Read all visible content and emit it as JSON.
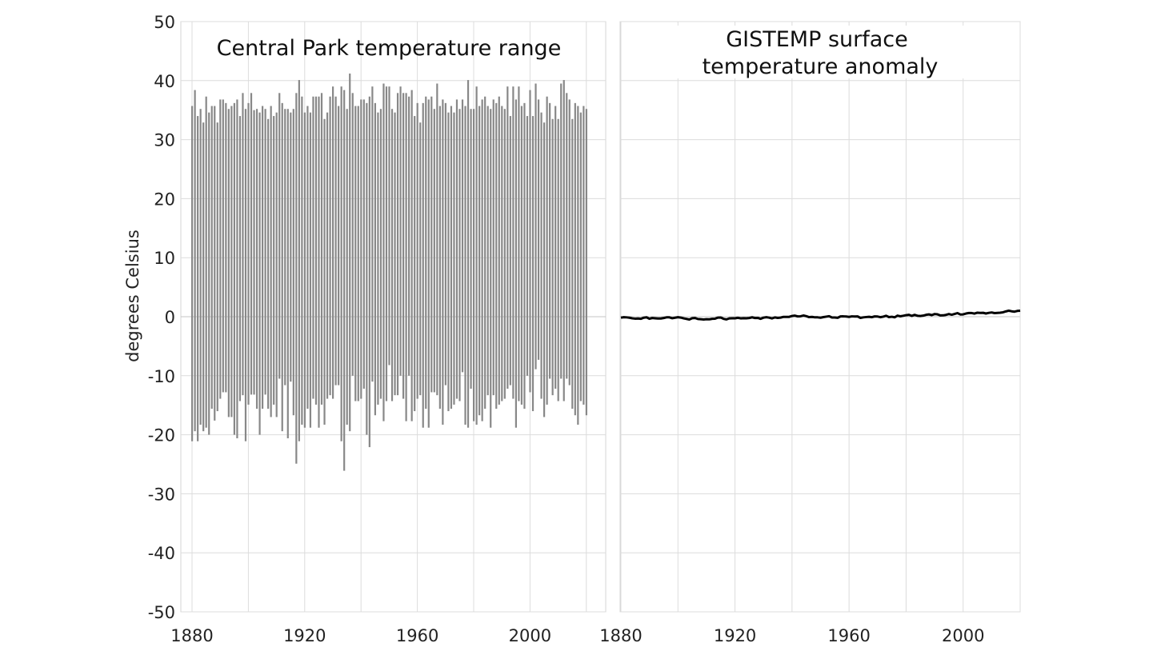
{
  "chart_data": [
    {
      "type": "bar",
      "subtype": "range",
      "title": "Central Park temperature range",
      "ylabel": "degrees Celsius",
      "xlabel": "",
      "ylim": [
        -50,
        50
      ],
      "xlim": [
        1876,
        2026
      ],
      "yticks": [
        "50",
        "40",
        "30",
        "20",
        "10",
        "0",
        "-10",
        "-20",
        "-30",
        "-40",
        "-50"
      ],
      "xticks": [
        "1880",
        "1920",
        "1960",
        "2000"
      ],
      "grid": true,
      "bar_color": "#888888",
      "x_start": 1880,
      "high": [
        35.7,
        38.4,
        34.0,
        35.2,
        32.9,
        37.3,
        34.6,
        35.7,
        35.7,
        32.9,
        36.8,
        36.8,
        36.2,
        35.2,
        35.7,
        36.2,
        36.8,
        34.0,
        37.9,
        35.2,
        36.2,
        37.9,
        35.0,
        35.2,
        34.6,
        35.7,
        35.2,
        33.5,
        35.7,
        34.0,
        34.6,
        37.9,
        36.2,
        35.2,
        35.2,
        34.6,
        35.2,
        37.9,
        40.1,
        37.3,
        34.6,
        35.7,
        34.6,
        37.3,
        37.3,
        37.3,
        37.9,
        33.5,
        34.6,
        37.3,
        39.0,
        37.3,
        35.7,
        39.0,
        38.4,
        35.2,
        41.2,
        37.9,
        35.7,
        35.7,
        36.8,
        36.8,
        36.2,
        37.3,
        39.0,
        36.2,
        34.6,
        35.2,
        39.5,
        39.0,
        39.0,
        35.2,
        34.6,
        37.9,
        39.0,
        37.9,
        37.9,
        37.3,
        38.4,
        34.0,
        36.2,
        32.9,
        36.2,
        37.3,
        36.8,
        37.3,
        35.2,
        39.5,
        35.7,
        36.8,
        36.2,
        34.6,
        35.7,
        34.6,
        36.8,
        35.2,
        36.8,
        35.7,
        40.1,
        35.2,
        35.2,
        39.0,
        35.7,
        36.8,
        37.3,
        35.7,
        35.2,
        36.8,
        36.2,
        37.3,
        35.7,
        35.2,
        39.0,
        34.0,
        39.0,
        36.8,
        39.0,
        35.7,
        36.2,
        34.0,
        38.4,
        34.0,
        39.5,
        36.8,
        34.6,
        32.9,
        37.3,
        36.2,
        33.5,
        35.7,
        33.5,
        39.5,
        40.1,
        37.9,
        36.8,
        33.5,
        36.2,
        35.7,
        34.6,
        35.7,
        35.2
      ],
      "low": [
        -21.1,
        -19.4,
        -21.1,
        -18.3,
        -19.4,
        -18.8,
        -20.0,
        -15.6,
        -17.6,
        -16.0,
        -13.9,
        -12.8,
        -12.8,
        -17.0,
        -17.0,
        -20.0,
        -20.6,
        -14.3,
        -13.3,
        -21.1,
        -14.9,
        -13.2,
        -13.2,
        -15.6,
        -20.0,
        -15.6,
        -13.2,
        -15.6,
        -17.0,
        -14.9,
        -17.0,
        -10.5,
        -19.4,
        -11.6,
        -20.6,
        -11.0,
        -16.7,
        -24.9,
        -21.1,
        -18.3,
        -18.8,
        -15.6,
        -18.8,
        -13.9,
        -14.9,
        -18.8,
        -14.9,
        -18.3,
        -13.9,
        -13.3,
        -13.9,
        -11.6,
        -11.6,
        -21.1,
        -26.1,
        -18.3,
        -19.4,
        -10.0,
        -14.3,
        -14.3,
        -13.9,
        -12.2,
        -20.0,
        -22.1,
        -11.0,
        -16.7,
        -14.9,
        -13.9,
        -17.7,
        -14.3,
        -8.2,
        -14.3,
        -13.3,
        -13.3,
        -10.0,
        -13.9,
        -17.7,
        -10.0,
        -17.7,
        -16.0,
        -13.9,
        -13.3,
        -18.8,
        -15.6,
        -18.8,
        -12.8,
        -12.8,
        -13.3,
        -15.6,
        -18.3,
        -11.6,
        -16.0,
        -15.6,
        -14.9,
        -13.9,
        -14.3,
        -9.4,
        -18.3,
        -18.8,
        -12.2,
        -17.7,
        -18.3,
        -16.7,
        -17.7,
        -15.6,
        -13.3,
        -18.8,
        -13.3,
        -15.6,
        -14.9,
        -14.3,
        -13.9,
        -12.2,
        -11.6,
        -13.9,
        -18.8,
        -14.3,
        -14.9,
        -15.6,
        -10.0,
        -12.8,
        -16.0,
        -8.9,
        -7.3,
        -13.9,
        -17.0,
        -14.9,
        -10.5,
        -13.3,
        -12.2,
        -14.3,
        -10.5,
        -14.3,
        -10.5,
        -11.6,
        -15.6,
        -16.7,
        -18.3,
        -14.3,
        -14.9,
        -16.7
      ]
    },
    {
      "type": "line",
      "title": "GISTEMP surface temperature anomaly",
      "title_lines": [
        "GISTEMP surface",
        "temperature anomaly"
      ],
      "ylim": [
        -50,
        50
      ],
      "xlim": [
        1880,
        2020
      ],
      "xticks": [
        "1880",
        "1920",
        "1960",
        "2000"
      ],
      "grid": true,
      "line_color": "#000000",
      "x_start": 1880,
      "values": [
        -0.16,
        -0.08,
        -0.11,
        -0.17,
        -0.28,
        -0.33,
        -0.31,
        -0.36,
        -0.17,
        -0.1,
        -0.35,
        -0.22,
        -0.27,
        -0.31,
        -0.3,
        -0.22,
        -0.11,
        -0.11,
        -0.26,
        -0.17,
        -0.08,
        -0.15,
        -0.28,
        -0.37,
        -0.47,
        -0.26,
        -0.22,
        -0.39,
        -0.43,
        -0.48,
        -0.43,
        -0.44,
        -0.36,
        -0.34,
        -0.15,
        -0.14,
        -0.36,
        -0.46,
        -0.29,
        -0.27,
        -0.27,
        -0.19,
        -0.28,
        -0.26,
        -0.27,
        -0.22,
        -0.1,
        -0.22,
        -0.2,
        -0.36,
        -0.16,
        -0.09,
        -0.16,
        -0.29,
        -0.12,
        -0.2,
        -0.15,
        -0.03,
        -0.03,
        -0.03,
        0.12,
        0.18,
        0.05,
        0.07,
        0.2,
        0.09,
        -0.07,
        -0.03,
        -0.11,
        -0.11,
        -0.17,
        -0.07,
        0.01,
        0.08,
        -0.13,
        -0.14,
        -0.19,
        0.05,
        0.06,
        0.03,
        -0.03,
        0.06,
        0.03,
        0.05,
        -0.2,
        -0.11,
        -0.06,
        -0.02,
        -0.08,
        0.05,
        0.03,
        -0.08,
        0.01,
        0.16,
        -0.07,
        -0.01,
        -0.1,
        0.18,
        0.07,
        0.16,
        0.26,
        0.32,
        0.14,
        0.31,
        0.16,
        0.12,
        0.18,
        0.32,
        0.39,
        0.27,
        0.45,
        0.4,
        0.22,
        0.23,
        0.31,
        0.45,
        0.33,
        0.46,
        0.61,
        0.38,
        0.39,
        0.54,
        0.63,
        0.62,
        0.53,
        0.68,
        0.64,
        0.66,
        0.54,
        0.65,
        0.72,
        0.61,
        0.65,
        0.68,
        0.75,
        0.9,
        1.02,
        0.92,
        0.85,
        0.98,
        1.02
      ]
    }
  ]
}
